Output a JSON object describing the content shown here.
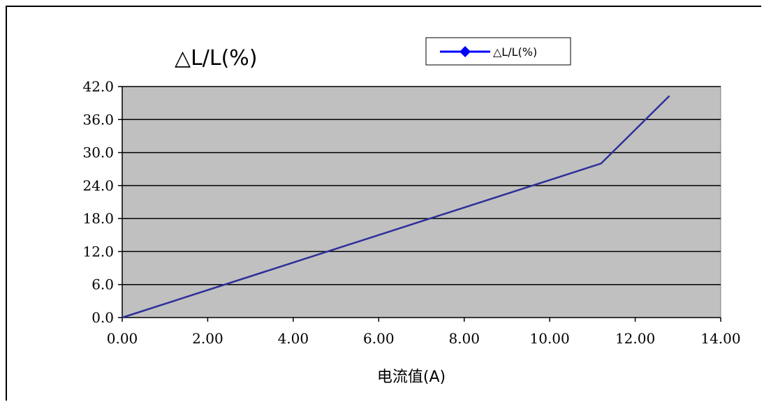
{
  "chart_data": {
    "type": "line",
    "title": "△L/L(%)",
    "xlabel": "电流值(A)",
    "ylabel": "",
    "xlim": [
      0,
      14
    ],
    "ylim": [
      0,
      42
    ],
    "x_ticks": [
      "0.00",
      "2.00",
      "4.00",
      "6.00",
      "8.00",
      "10.00",
      "12.00",
      "14.00"
    ],
    "y_ticks": [
      "0.0",
      "6.0",
      "12.0",
      "18.0",
      "24.0",
      "30.0",
      "36.0",
      "42.0"
    ],
    "grid": "horizontal",
    "legend": "top-right",
    "series": [
      {
        "name": "△L/L(%)",
        "color": "#2e2e9a",
        "legend_color": "#0000ff",
        "marker": "diamond",
        "x": [
          0,
          11.2,
          12.8
        ],
        "y": [
          0,
          28.0,
          40.3
        ]
      }
    ],
    "plot_background": "#c0c0c0"
  }
}
